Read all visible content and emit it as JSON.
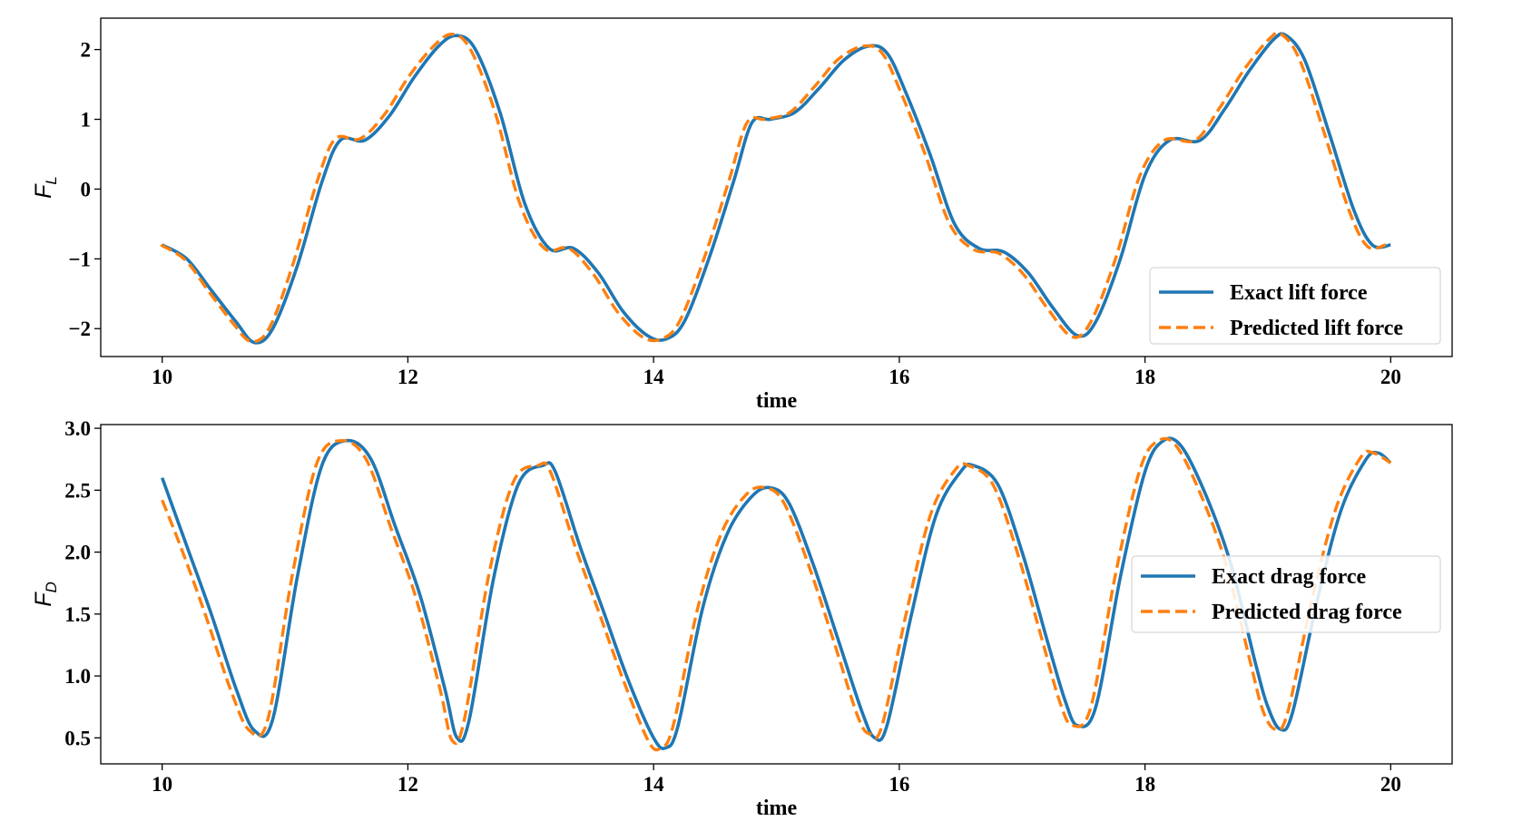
{
  "chart_data": [
    {
      "type": "line",
      "xlabel": "time",
      "ylabel": {
        "base": "F",
        "sub": "L"
      },
      "xlim": [
        9.5,
        20.5
      ],
      "ylim": [
        -2.4,
        2.45
      ],
      "xticks": [
        10,
        12,
        14,
        16,
        18,
        20
      ],
      "yticks": [
        -2,
        -1,
        0,
        1,
        2
      ],
      "ytick_labels": [
        "−2",
        "−1",
        "0",
        "1",
        "2"
      ],
      "legend_position": "lower right",
      "series": [
        {
          "name": "Exact lift force",
          "color": "#1f77b4",
          "style": "solid",
          "x": [
            10.0,
            10.2,
            10.4,
            10.6,
            10.75,
            10.9,
            11.1,
            11.3,
            11.45,
            11.65,
            11.85,
            12.05,
            12.25,
            12.4,
            12.55,
            12.75,
            12.95,
            13.15,
            13.35,
            13.55,
            13.75,
            13.95,
            14.1,
            14.25,
            14.45,
            14.65,
            14.8,
            14.95,
            15.15,
            15.35,
            15.55,
            15.75,
            15.9,
            16.05,
            16.25,
            16.45,
            16.65,
            16.85,
            17.05,
            17.25,
            17.45,
            17.6,
            17.8,
            18.0,
            18.2,
            18.45,
            18.65,
            18.85,
            19.05,
            19.15,
            19.3,
            19.5,
            19.7,
            19.85,
            20.0
          ],
          "y": [
            -0.8,
            -1.0,
            -1.45,
            -1.9,
            -2.2,
            -2.0,
            -1.1,
            0.1,
            0.7,
            0.7,
            1.05,
            1.6,
            2.05,
            2.2,
            2.0,
            1.1,
            -0.2,
            -0.85,
            -0.85,
            -1.2,
            -1.75,
            -2.1,
            -2.15,
            -1.9,
            -1.0,
            0.1,
            0.95,
            1.0,
            1.1,
            1.45,
            1.85,
            2.05,
            1.95,
            1.4,
            0.5,
            -0.5,
            -0.85,
            -0.9,
            -1.2,
            -1.7,
            -2.1,
            -1.9,
            -1.0,
            0.2,
            0.7,
            0.7,
            1.15,
            1.7,
            2.15,
            2.2,
            1.85,
            0.8,
            -0.3,
            -0.8,
            -0.8
          ]
        },
        {
          "name": "Predicted lift force",
          "color": "#ff7f0e",
          "style": "dashed",
          "x": [
            9.99,
            10.19,
            10.38,
            10.58,
            10.72,
            10.87,
            11.06,
            11.26,
            11.41,
            11.61,
            11.81,
            12.01,
            12.21,
            12.36,
            12.51,
            12.71,
            12.91,
            13.11,
            13.31,
            13.51,
            13.71,
            13.91,
            14.06,
            14.21,
            14.41,
            14.61,
            14.76,
            14.91,
            15.11,
            15.31,
            15.51,
            15.71,
            15.86,
            16.01,
            16.21,
            16.41,
            16.61,
            16.81,
            17.01,
            17.21,
            17.41,
            17.56,
            17.76,
            17.96,
            18.16,
            18.41,
            18.61,
            18.81,
            19.01,
            19.11,
            19.26,
            19.46,
            19.66,
            19.81,
            19.96
          ],
          "y": [
            -0.8,
            -1.02,
            -1.47,
            -1.93,
            -2.18,
            -2.0,
            -1.1,
            0.1,
            0.72,
            0.72,
            1.07,
            1.62,
            2.05,
            2.22,
            2.0,
            1.1,
            -0.2,
            -0.85,
            -0.85,
            -1.22,
            -1.77,
            -2.12,
            -2.15,
            -1.9,
            -1.0,
            0.1,
            0.95,
            1.0,
            1.1,
            1.47,
            1.87,
            2.05,
            1.95,
            1.4,
            0.5,
            -0.5,
            -0.87,
            -0.92,
            -1.22,
            -1.72,
            -2.12,
            -1.9,
            -1.0,
            0.2,
            0.7,
            0.7,
            1.17,
            1.72,
            2.15,
            2.22,
            1.85,
            0.8,
            -0.3,
            -0.82,
            -0.8
          ]
        }
      ]
    },
    {
      "type": "line",
      "xlabel": "time",
      "ylabel": {
        "base": "F",
        "sub": "D"
      },
      "xlim": [
        9.5,
        20.5
      ],
      "ylim": [
        0.29,
        3.03
      ],
      "xticks": [
        10,
        12,
        14,
        16,
        18,
        20
      ],
      "yticks": [
        0.5,
        1.0,
        1.5,
        2.0,
        2.5,
        3.0
      ],
      "ytick_labels": [
        "0.5",
        "1.0",
        "1.5",
        "2.0",
        "2.5",
        "3.0"
      ],
      "legend_position": "center right",
      "series": [
        {
          "name": "Exact drag force",
          "color": "#1f77b4",
          "style": "solid",
          "x": [
            10.0,
            10.2,
            10.4,
            10.6,
            10.75,
            10.9,
            11.1,
            11.3,
            11.5,
            11.7,
            11.9,
            12.1,
            12.3,
            12.4,
            12.5,
            12.7,
            12.9,
            13.1,
            13.2,
            13.4,
            13.6,
            13.8,
            14.0,
            14.1,
            14.2,
            14.4,
            14.6,
            14.8,
            14.95,
            15.1,
            15.3,
            15.5,
            15.7,
            15.8,
            15.9,
            16.1,
            16.3,
            16.5,
            16.6,
            16.8,
            17.0,
            17.2,
            17.35,
            17.45,
            17.6,
            17.8,
            18.0,
            18.15,
            18.3,
            18.5,
            18.7,
            18.9,
            19.0,
            19.1,
            19.2,
            19.4,
            19.6,
            19.8,
            19.9,
            20.0
          ],
          "y": [
            2.6,
            2.05,
            1.5,
            0.9,
            0.56,
            0.65,
            1.8,
            2.7,
            2.9,
            2.75,
            2.2,
            1.65,
            0.9,
            0.5,
            0.65,
            1.8,
            2.55,
            2.7,
            2.65,
            2.05,
            1.5,
            0.95,
            0.5,
            0.42,
            0.6,
            1.55,
            2.15,
            2.45,
            2.52,
            2.4,
            1.9,
            1.3,
            0.7,
            0.5,
            0.6,
            1.5,
            2.3,
            2.65,
            2.7,
            2.55,
            2.0,
            1.3,
            0.8,
            0.6,
            0.75,
            1.8,
            2.65,
            2.9,
            2.85,
            2.45,
            1.9,
            1.1,
            0.75,
            0.57,
            0.7,
            1.6,
            2.35,
            2.75,
            2.8,
            2.72
          ]
        },
        {
          "name": "Predicted drag force",
          "color": "#ff7f0e",
          "style": "dashed",
          "x": [
            10.0,
            10.16,
            10.36,
            10.56,
            10.71,
            10.86,
            11.06,
            11.26,
            11.46,
            11.66,
            11.86,
            12.06,
            12.26,
            12.36,
            12.46,
            12.66,
            12.86,
            13.06,
            13.16,
            13.36,
            13.56,
            13.76,
            13.96,
            14.06,
            14.16,
            14.36,
            14.56,
            14.76,
            14.91,
            15.06,
            15.26,
            15.46,
            15.66,
            15.76,
            15.86,
            16.06,
            16.26,
            16.46,
            16.56,
            16.76,
            16.96,
            17.16,
            17.31,
            17.41,
            17.56,
            17.76,
            17.96,
            18.11,
            18.26,
            18.46,
            18.66,
            18.86,
            18.96,
            19.06,
            19.16,
            19.36,
            19.56,
            19.76,
            19.86,
            20.0
          ],
          "y": [
            2.42,
            2.02,
            1.47,
            0.88,
            0.56,
            0.65,
            1.82,
            2.72,
            2.9,
            2.75,
            2.2,
            1.65,
            0.9,
            0.48,
            0.65,
            1.82,
            2.57,
            2.7,
            2.65,
            2.05,
            1.5,
            0.95,
            0.47,
            0.42,
            0.6,
            1.55,
            2.17,
            2.47,
            2.52,
            2.4,
            1.9,
            1.3,
            0.68,
            0.53,
            0.6,
            1.52,
            2.32,
            2.67,
            2.7,
            2.55,
            2.0,
            1.3,
            0.78,
            0.6,
            0.75,
            1.82,
            2.67,
            2.9,
            2.85,
            2.45,
            1.9,
            1.1,
            0.72,
            0.57,
            0.7,
            1.62,
            2.37,
            2.77,
            2.8,
            2.72
          ]
        }
      ]
    }
  ]
}
